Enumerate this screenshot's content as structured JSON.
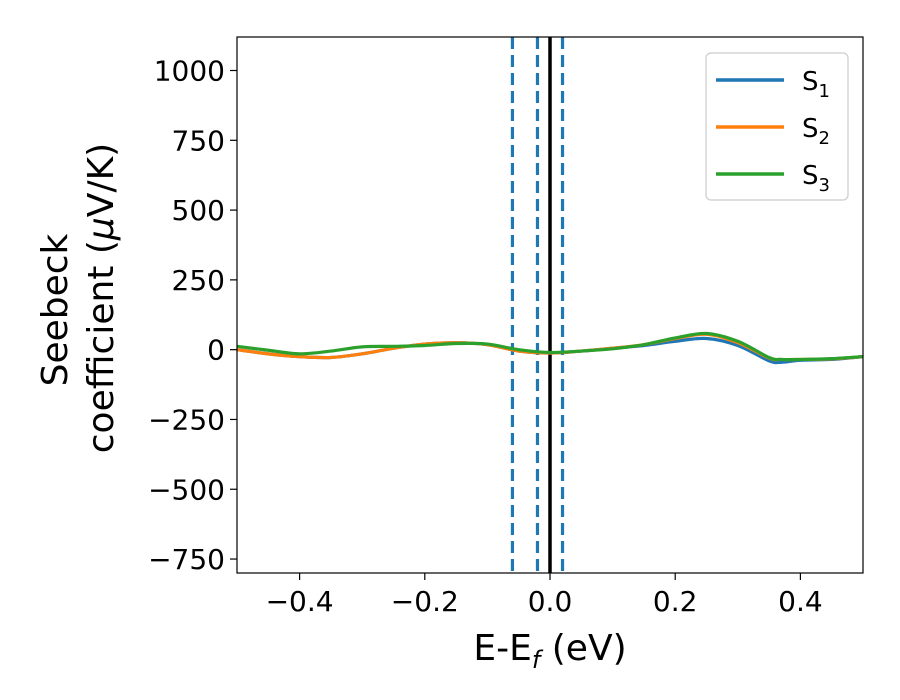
{
  "chart_data": {
    "type": "line",
    "xlabel": {
      "main": "E-E",
      "sub": "f",
      "unit": " (eV)"
    },
    "ylabel": {
      "line1": "Seebeck",
      "line2_prefix": "coefficient  (",
      "mu": "μ",
      "line2_suffix": "V/K)"
    },
    "xlim": [
      -0.5,
      0.5
    ],
    "ylim": [
      -800,
      1120
    ],
    "xticks": [
      -0.4,
      -0.2,
      0.0,
      0.2,
      0.4
    ],
    "xtick_labels": [
      "−0.4",
      "−0.2",
      "0.0",
      "0.2",
      "0.4"
    ],
    "yticks": [
      -750,
      -500,
      -250,
      0,
      250,
      500,
      750,
      1000
    ],
    "ytick_labels": [
      "−750",
      "−500",
      "−250",
      "0",
      "250",
      "500",
      "750",
      "1000"
    ],
    "legend_position": "top-right",
    "vlines": [
      {
        "x": -0.06,
        "style": "dashed",
        "color": "#1f77b4"
      },
      {
        "x": -0.02,
        "style": "dashed",
        "color": "#1f77b4"
      },
      {
        "x": 0.0,
        "style": "solid",
        "color": "#000000"
      },
      {
        "x": 0.02,
        "style": "dashed",
        "color": "#1f77b4"
      }
    ],
    "series": [
      {
        "name": "S",
        "subscript": "1",
        "color": "#1f77b4",
        "x": [
          -0.5,
          -0.45,
          -0.4,
          -0.35,
          -0.3,
          -0.25,
          -0.2,
          -0.15,
          -0.1,
          -0.05,
          0.0,
          0.05,
          0.1,
          0.15,
          0.2,
          0.25,
          0.3,
          0.35,
          0.37,
          0.4,
          0.45,
          0.5
        ],
        "y": [
          0,
          -15,
          -25,
          -28,
          -15,
          5,
          20,
          25,
          18,
          -5,
          -12,
          -5,
          5,
          15,
          30,
          40,
          15,
          -40,
          -45,
          -38,
          -35,
          -25
        ]
      },
      {
        "name": "S",
        "subscript": "2",
        "color": "#ff7f0e",
        "x": [
          -0.5,
          -0.45,
          -0.4,
          -0.35,
          -0.3,
          -0.25,
          -0.2,
          -0.15,
          -0.1,
          -0.05,
          0.0,
          0.05,
          0.1,
          0.15,
          0.2,
          0.25,
          0.3,
          0.35,
          0.37,
          0.4,
          0.45,
          0.5
        ],
        "y": [
          0,
          -15,
          -25,
          -28,
          -15,
          5,
          20,
          25,
          18,
          -5,
          -12,
          -5,
          5,
          18,
          40,
          55,
          25,
          -30,
          -35,
          -35,
          -33,
          -25
        ]
      },
      {
        "name": "S",
        "subscript": "3",
        "color": "#2ca02c",
        "x": [
          -0.5,
          -0.45,
          -0.4,
          -0.35,
          -0.3,
          -0.25,
          -0.2,
          -0.15,
          -0.1,
          -0.05,
          0.0,
          0.05,
          0.1,
          0.15,
          0.2,
          0.25,
          0.3,
          0.35,
          0.37,
          0.4,
          0.45,
          0.5
        ],
        "y": [
          12,
          -2,
          -15,
          -5,
          10,
          12,
          15,
          22,
          20,
          0,
          -10,
          -5,
          3,
          18,
          42,
          58,
          30,
          -28,
          -35,
          -35,
          -32,
          -25
        ]
      }
    ]
  }
}
